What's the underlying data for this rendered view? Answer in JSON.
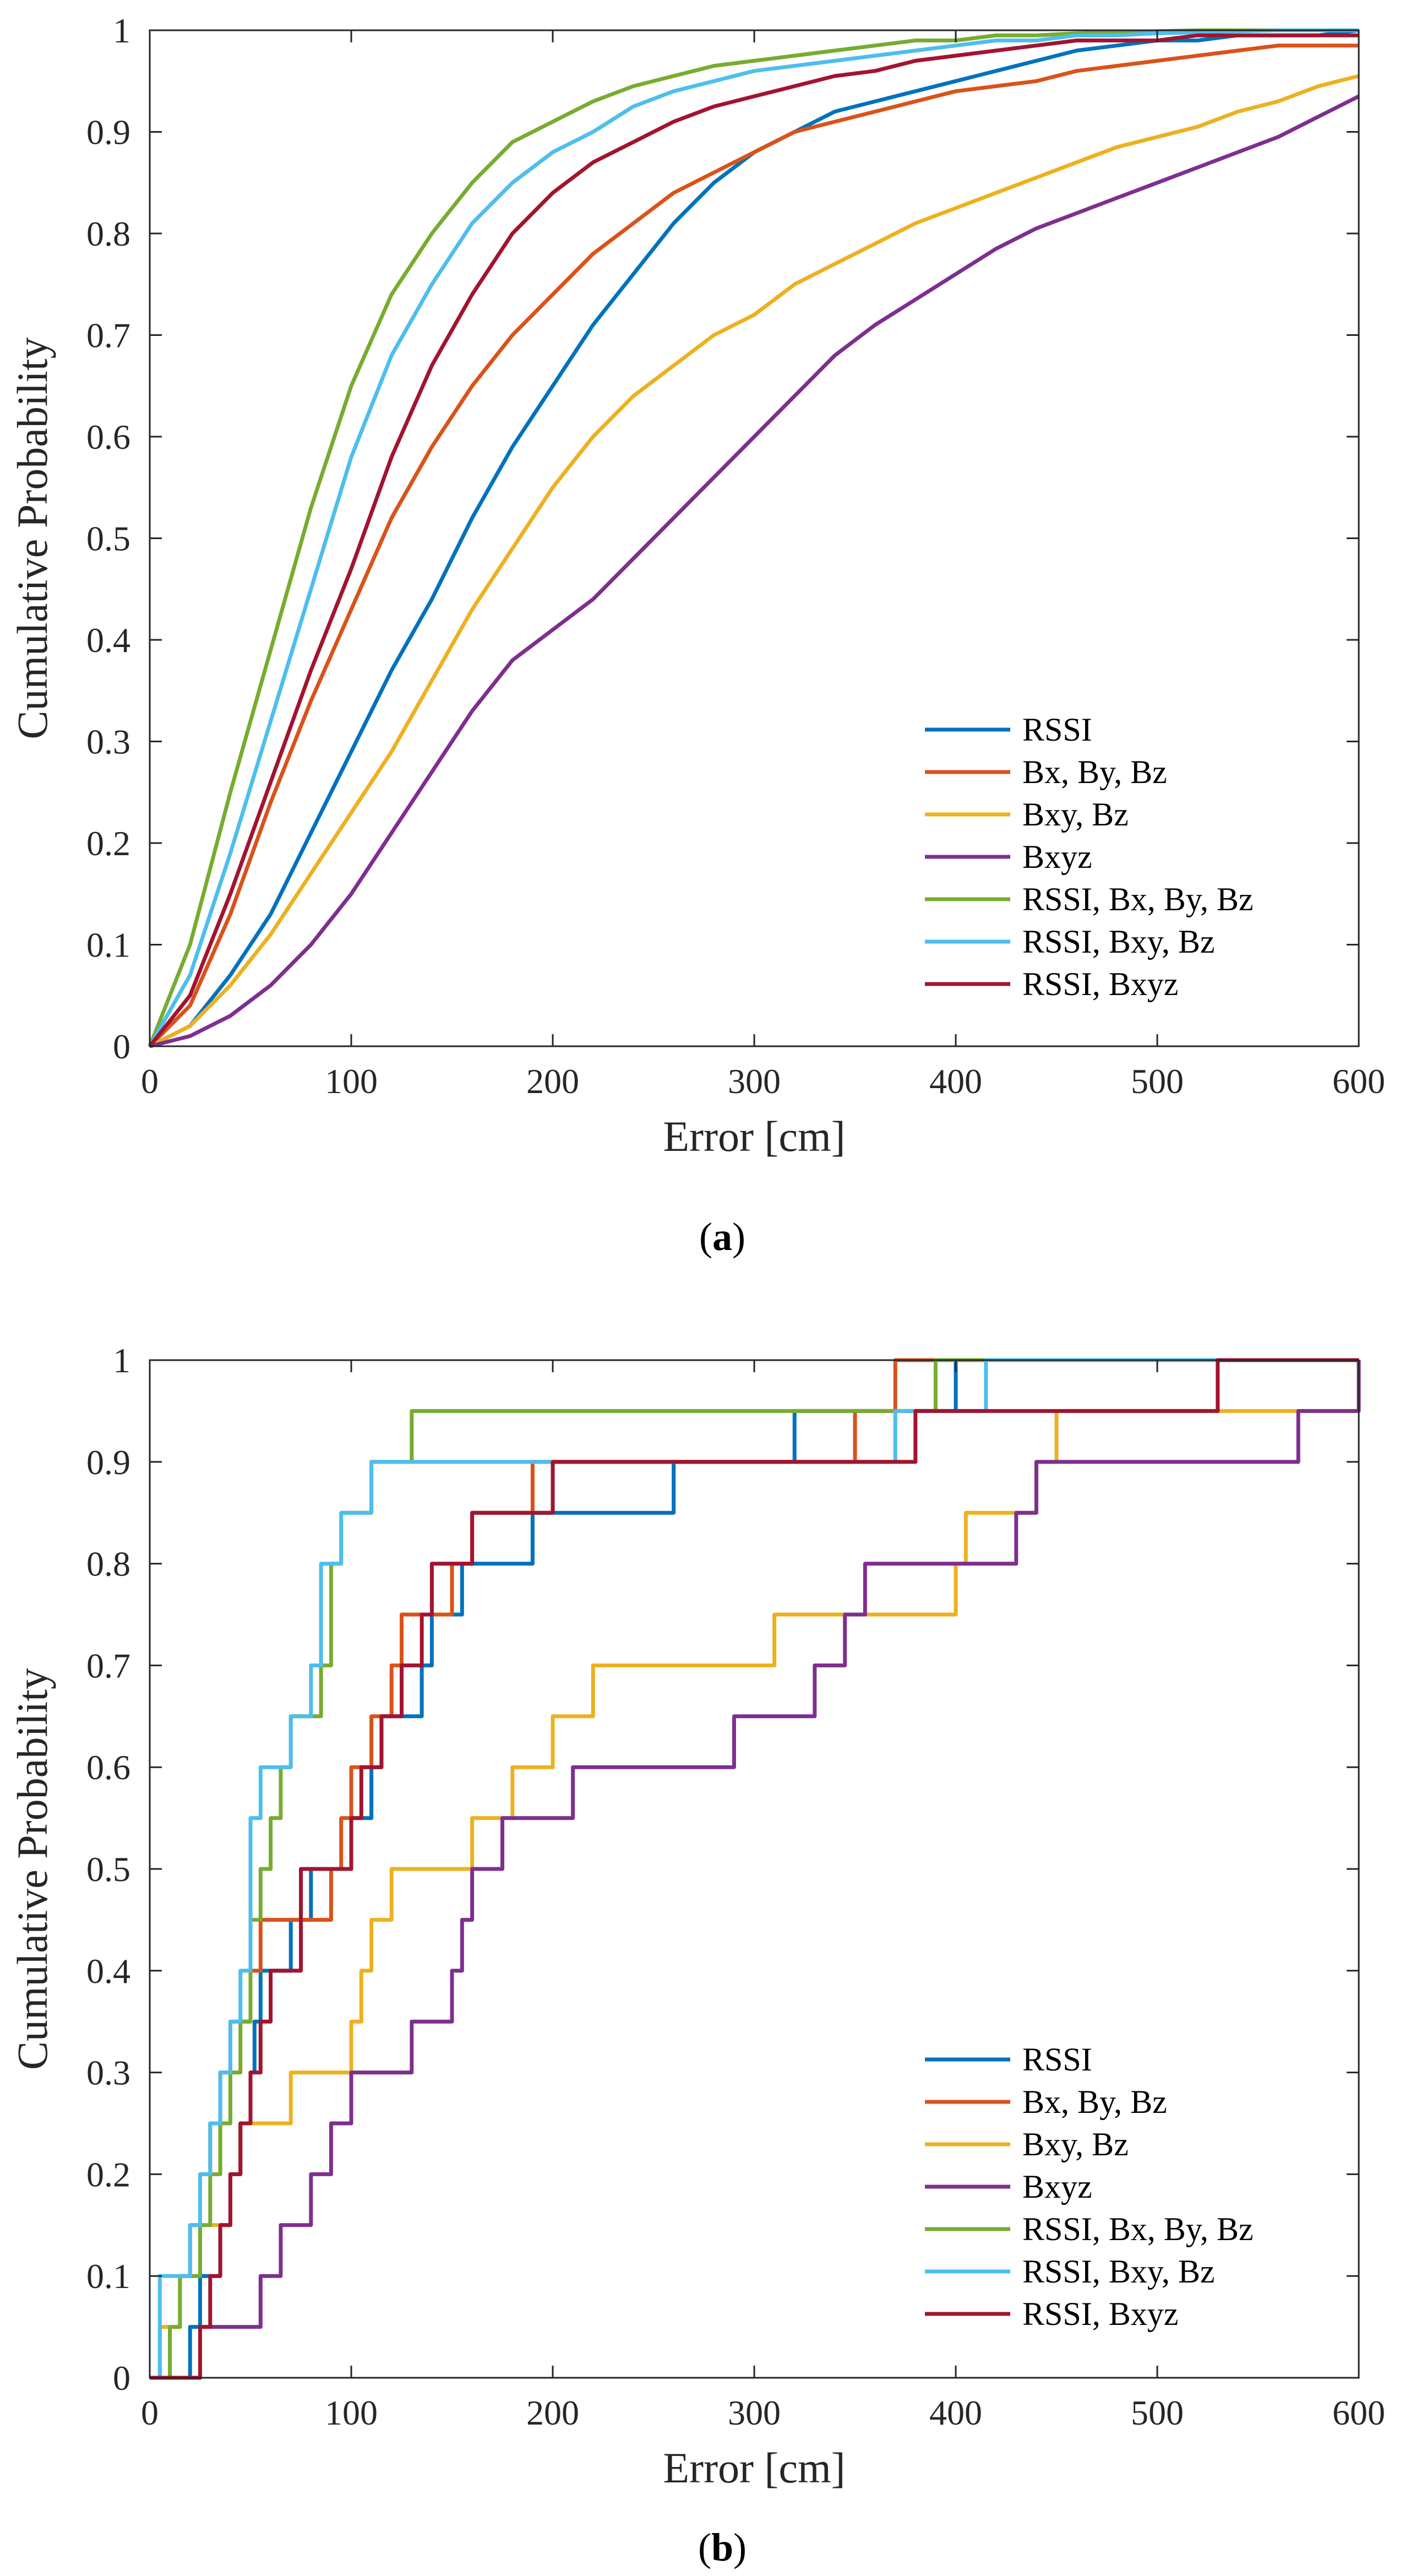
{
  "chart_data": [
    {
      "panel": "a",
      "caption": {
        "open": "(",
        "letter": "a",
        "close": ")"
      },
      "type": "line",
      "xlabel": "Error [cm]",
      "ylabel": "Cumulative Probability",
      "xlim": [
        0,
        600
      ],
      "ylim": [
        0,
        1
      ],
      "xticks": [
        "0",
        "100",
        "200",
        "300",
        "400",
        "500",
        "600"
      ],
      "yticks": [
        "0",
        "0.1",
        "0.2",
        "0.3",
        "0.4",
        "0.5",
        "0.6",
        "0.7",
        "0.8",
        "0.9",
        "1"
      ],
      "grid": false,
      "legend_position": "bottom-right",
      "series": [
        {
          "name": "RSSI",
          "color": "#0072BD",
          "x": [
            0,
            20,
            40,
            60,
            80,
            100,
            120,
            140,
            160,
            180,
            200,
            220,
            240,
            260,
            280,
            300,
            320,
            340,
            360,
            380,
            400,
            420,
            440,
            460,
            480,
            500,
            520,
            540,
            560,
            580,
            600
          ],
          "y": [
            0,
            0.02,
            0.07,
            0.13,
            0.21,
            0.29,
            0.37,
            0.44,
            0.52,
            0.59,
            0.65,
            0.71,
            0.76,
            0.81,
            0.85,
            0.88,
            0.9,
            0.92,
            0.93,
            0.94,
            0.95,
            0.96,
            0.97,
            0.98,
            0.985,
            0.99,
            0.99,
            0.995,
            0.995,
            0.995,
            1.0
          ]
        },
        {
          "name": "Bx, By, Bz",
          "color": "#D95319",
          "x": [
            0,
            20,
            40,
            60,
            80,
            100,
            120,
            140,
            160,
            180,
            200,
            220,
            240,
            260,
            280,
            300,
            320,
            340,
            360,
            380,
            400,
            420,
            440,
            460,
            480,
            500,
            520,
            540,
            560,
            580,
            600
          ],
          "y": [
            0,
            0.04,
            0.13,
            0.24,
            0.34,
            0.43,
            0.52,
            0.59,
            0.65,
            0.7,
            0.74,
            0.78,
            0.81,
            0.84,
            0.86,
            0.88,
            0.9,
            0.91,
            0.92,
            0.93,
            0.94,
            0.945,
            0.95,
            0.96,
            0.965,
            0.97,
            0.975,
            0.98,
            0.985,
            0.985,
            0.985
          ]
        },
        {
          "name": "Bxy, Bz",
          "color": "#EDB120",
          "x": [
            0,
            20,
            40,
            60,
            80,
            100,
            120,
            140,
            160,
            180,
            200,
            220,
            240,
            260,
            280,
            300,
            320,
            340,
            360,
            380,
            400,
            420,
            440,
            460,
            480,
            500,
            520,
            540,
            560,
            580,
            600
          ],
          "y": [
            0,
            0.02,
            0.06,
            0.11,
            0.17,
            0.23,
            0.29,
            0.36,
            0.43,
            0.49,
            0.55,
            0.6,
            0.64,
            0.67,
            0.7,
            0.72,
            0.75,
            0.77,
            0.79,
            0.81,
            0.825,
            0.84,
            0.855,
            0.87,
            0.885,
            0.895,
            0.905,
            0.92,
            0.93,
            0.945,
            0.955
          ]
        },
        {
          "name": "Bxyz",
          "color": "#7E2F8E",
          "x": [
            0,
            20,
            40,
            60,
            80,
            100,
            120,
            140,
            160,
            180,
            200,
            220,
            240,
            260,
            280,
            300,
            320,
            340,
            360,
            380,
            400,
            420,
            440,
            460,
            480,
            500,
            520,
            540,
            560,
            580,
            600
          ],
          "y": [
            0,
            0.01,
            0.03,
            0.06,
            0.1,
            0.15,
            0.21,
            0.27,
            0.33,
            0.38,
            0.41,
            0.44,
            0.48,
            0.52,
            0.56,
            0.6,
            0.64,
            0.68,
            0.71,
            0.735,
            0.76,
            0.785,
            0.805,
            0.82,
            0.835,
            0.85,
            0.865,
            0.88,
            0.895,
            0.915,
            0.935
          ]
        },
        {
          "name": "RSSI, Bx, By, Bz",
          "color": "#77AC30",
          "x": [
            0,
            20,
            40,
            60,
            80,
            100,
            120,
            140,
            160,
            180,
            200,
            220,
            240,
            260,
            280,
            300,
            320,
            340,
            360,
            380,
            400,
            420,
            440,
            460,
            480,
            500,
            520,
            540,
            560,
            580,
            600
          ],
          "y": [
            0,
            0.1,
            0.25,
            0.39,
            0.53,
            0.65,
            0.74,
            0.8,
            0.85,
            0.89,
            0.91,
            0.93,
            0.945,
            0.955,
            0.965,
            0.97,
            0.975,
            0.98,
            0.985,
            0.99,
            0.99,
            0.995,
            0.995,
            0.997,
            0.998,
            0.999,
            1.0,
            1.0,
            1.0,
            1.0,
            1.0
          ]
        },
        {
          "name": "RSSI, Bxy, Bz",
          "color": "#4DBEEE",
          "x": [
            0,
            20,
            40,
            60,
            80,
            100,
            120,
            140,
            160,
            180,
            200,
            220,
            240,
            260,
            280,
            300,
            320,
            340,
            360,
            380,
            400,
            420,
            440,
            460,
            480,
            500,
            520,
            540,
            560,
            580,
            600
          ],
          "y": [
            0,
            0.07,
            0.19,
            0.32,
            0.45,
            0.58,
            0.68,
            0.75,
            0.81,
            0.85,
            0.88,
            0.9,
            0.925,
            0.94,
            0.95,
            0.96,
            0.965,
            0.97,
            0.975,
            0.98,
            0.985,
            0.99,
            0.99,
            0.995,
            0.995,
            0.997,
            0.998,
            0.999,
            1.0,
            1.0,
            1.0
          ]
        },
        {
          "name": "RSSI, Bxyz",
          "color": "#A2142F",
          "x": [
            0,
            20,
            40,
            60,
            80,
            100,
            120,
            140,
            160,
            180,
            200,
            220,
            240,
            260,
            280,
            300,
            320,
            340,
            360,
            380,
            400,
            420,
            440,
            460,
            480,
            500,
            520,
            540,
            560,
            580,
            600
          ],
          "y": [
            0,
            0.05,
            0.15,
            0.26,
            0.37,
            0.47,
            0.58,
            0.67,
            0.74,
            0.8,
            0.84,
            0.87,
            0.89,
            0.91,
            0.925,
            0.935,
            0.945,
            0.955,
            0.96,
            0.97,
            0.975,
            0.98,
            0.985,
            0.99,
            0.99,
            0.99,
            0.995,
            0.995,
            0.995,
            0.995,
            0.995
          ]
        }
      ]
    },
    {
      "panel": "b",
      "caption": {
        "open": "(",
        "letter": "b",
        "close": ")"
      },
      "type": "line",
      "step": true,
      "xlabel": "Error [cm]",
      "ylabel": "Cumulative Probability",
      "xlim": [
        0,
        600
      ],
      "ylim": [
        0,
        1
      ],
      "xticks": [
        "0",
        "100",
        "200",
        "300",
        "400",
        "500",
        "600"
      ],
      "yticks": [
        "0",
        "0.1",
        "0.2",
        "0.3",
        "0.4",
        "0.5",
        "0.6",
        "0.7",
        "0.8",
        "0.9",
        "1"
      ],
      "grid": false,
      "legend_position": "bottom-right",
      "series": [
        {
          "name": "RSSI",
          "color": "#0072BD",
          "x": [
            20,
            25,
            35,
            40,
            45,
            50,
            52,
            55,
            70,
            80,
            100,
            110,
            115,
            135,
            140,
            155,
            190,
            260,
            320,
            400,
            560
          ],
          "y": [
            0.05,
            0.1,
            0.15,
            0.2,
            0.25,
            0.3,
            0.35,
            0.4,
            0.45,
            0.5,
            0.55,
            0.6,
            0.65,
            0.7,
            0.75,
            0.8,
            0.85,
            0.9,
            0.95,
            1.0,
            1.0
          ]
        },
        {
          "name": "Bx, By, Bz",
          "color": "#D95319",
          "x": [
            10,
            15,
            20,
            25,
            30,
            35,
            40,
            50,
            55,
            90,
            95,
            100,
            110,
            120,
            125,
            150,
            160,
            190,
            350,
            370
          ],
          "y": [
            0.05,
            0.1,
            0.15,
            0.2,
            0.25,
            0.3,
            0.35,
            0.4,
            0.45,
            0.5,
            0.55,
            0.6,
            0.65,
            0.7,
            0.75,
            0.8,
            0.85,
            0.9,
            0.95,
            1.0
          ]
        },
        {
          "name": "Bxy, Bz",
          "color": "#EDB120",
          "x": [
            5,
            15,
            25,
            40,
            45,
            70,
            100,
            105,
            110,
            120,
            160,
            180,
            200,
            220,
            310,
            400,
            405,
            440,
            450,
            460,
            600
          ],
          "y": [
            0.05,
            0.1,
            0.15,
            0.2,
            0.25,
            0.3,
            0.35,
            0.4,
            0.45,
            0.5,
            0.55,
            0.6,
            0.65,
            0.7,
            0.75,
            0.8,
            0.85,
            0.9,
            0.95,
            0.95,
            0.95
          ]
        },
        {
          "name": "Bxyz",
          "color": "#7E2F8E",
          "x": [
            25,
            55,
            65,
            80,
            90,
            100,
            130,
            150,
            155,
            160,
            175,
            210,
            290,
            330,
            345,
            355,
            430,
            440,
            570,
            600
          ],
          "y": [
            0.05,
            0.1,
            0.15,
            0.2,
            0.25,
            0.3,
            0.35,
            0.4,
            0.45,
            0.5,
            0.55,
            0.6,
            0.65,
            0.7,
            0.75,
            0.8,
            0.85,
            0.9,
            0.95,
            1.0
          ]
        },
        {
          "name": "RSSI, Bx, By, Bz",
          "color": "#77AC30",
          "x": [
            10,
            15,
            25,
            30,
            35,
            40,
            45,
            50,
            55,
            60,
            65,
            70,
            85,
            90,
            95,
            110,
            130,
            390
          ],
          "y": [
            0.05,
            0.1,
            0.15,
            0.2,
            0.25,
            0.3,
            0.35,
            0.45,
            0.5,
            0.55,
            0.6,
            0.65,
            0.7,
            0.8,
            0.85,
            0.9,
            0.95,
            1.0
          ]
        },
        {
          "name": "RSSI, Bxy, Bz",
          "color": "#4DBEEE",
          "x": [
            5,
            20,
            25,
            30,
            35,
            40,
            45,
            50,
            55,
            70,
            80,
            85,
            95,
            110,
            115,
            370,
            415
          ],
          "y": [
            0.1,
            0.15,
            0.2,
            0.25,
            0.3,
            0.35,
            0.4,
            0.55,
            0.6,
            0.65,
            0.7,
            0.8,
            0.85,
            0.9,
            0.9,
            0.95,
            1.0
          ]
        },
        {
          "name": "RSSI, Bxyz",
          "color": "#A2142F",
          "x": [
            25,
            30,
            35,
            40,
            45,
            50,
            55,
            60,
            75,
            100,
            105,
            115,
            125,
            135,
            140,
            160,
            200,
            380,
            530
          ],
          "y": [
            0.05,
            0.1,
            0.15,
            0.2,
            0.25,
            0.3,
            0.35,
            0.4,
            0.5,
            0.55,
            0.6,
            0.65,
            0.7,
            0.75,
            0.8,
            0.85,
            0.9,
            0.95,
            1.0
          ]
        }
      ]
    }
  ]
}
